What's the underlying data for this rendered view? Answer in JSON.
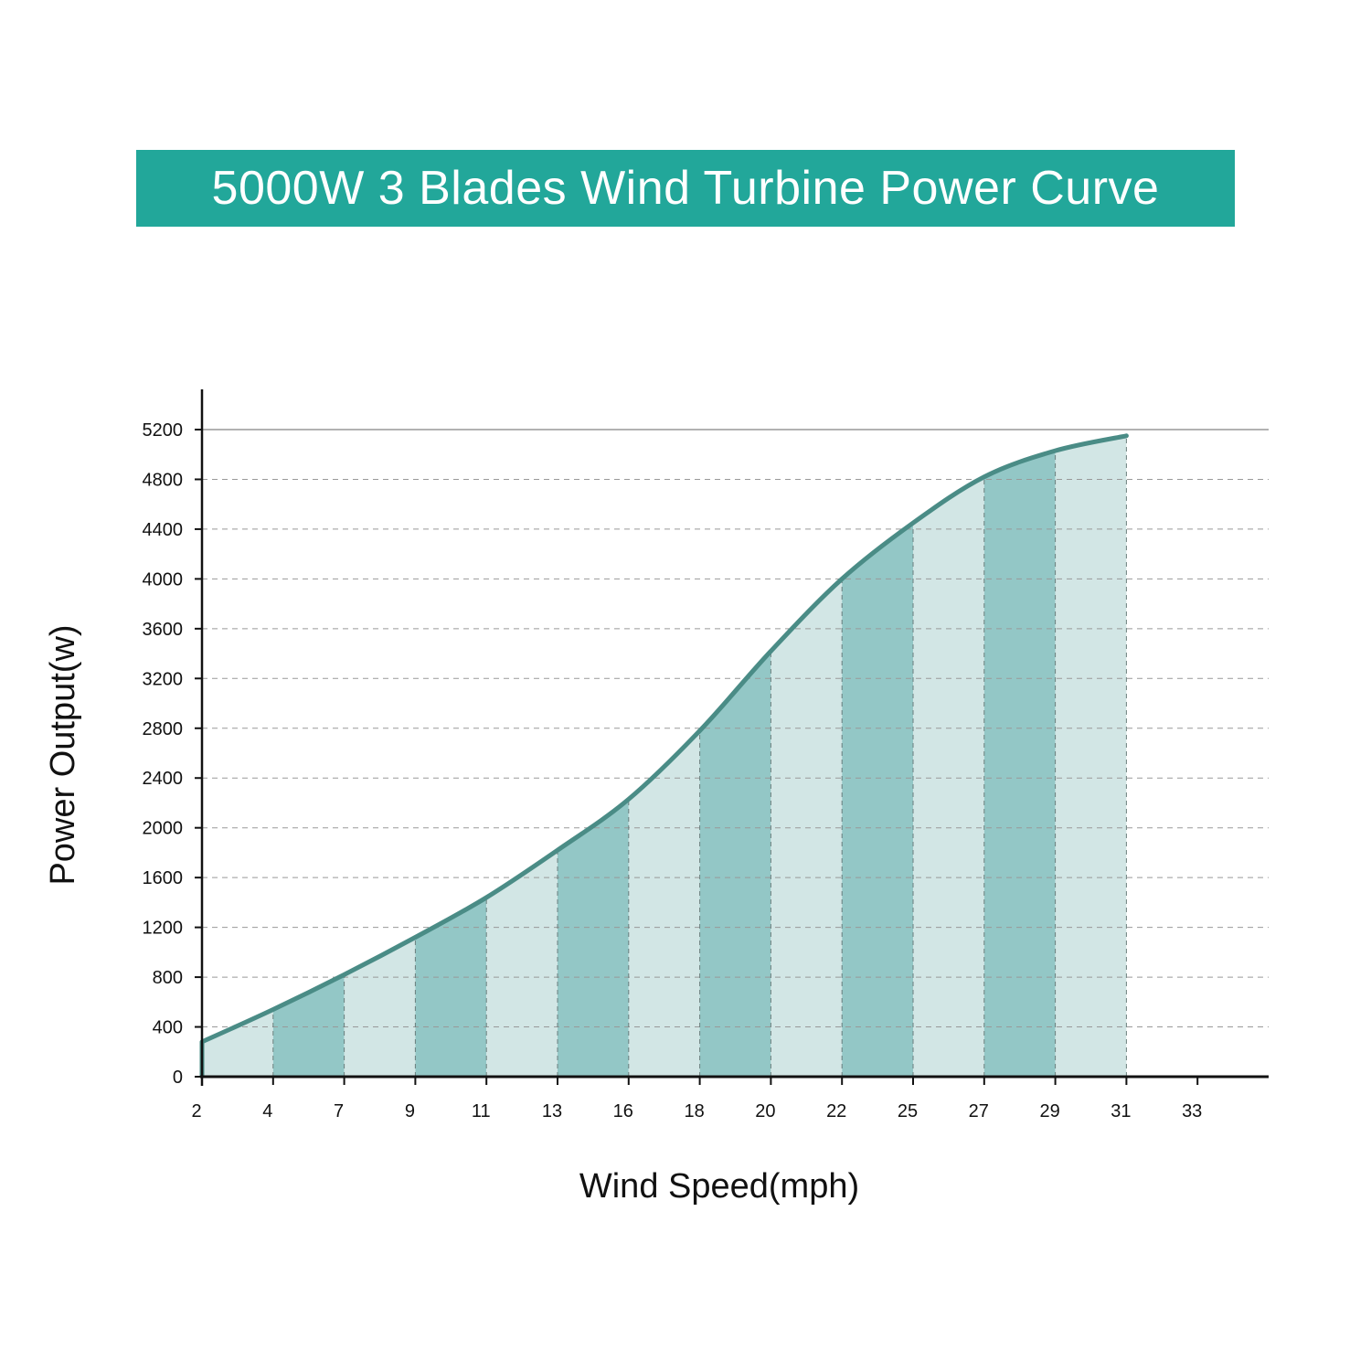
{
  "chart_data": {
    "type": "area",
    "title": "5000W 3 Blades Wind Turbine Power Curve",
    "xlabel": "Wind Speed(mph)",
    "ylabel": "Power Output(w)",
    "x_ticks": [
      "2",
      "4",
      "7",
      "9",
      "11",
      "13",
      "16",
      "18",
      "20",
      "22",
      "25",
      "27",
      "29",
      "31",
      "33"
    ],
    "y_ticks": [
      0,
      400,
      800,
      1200,
      1600,
      2000,
      2400,
      2800,
      3200,
      3600,
      4000,
      4400,
      4800,
      5200
    ],
    "ylim": [
      0,
      5200
    ],
    "grid": "horizontal dashed",
    "series": [
      {
        "x": [
          "2",
          "4",
          "7",
          "9",
          "11",
          "13",
          "16",
          "18",
          "20",
          "22",
          "25",
          "27",
          "29",
          "31"
        ],
        "values": [
          280,
          540,
          820,
          1120,
          1440,
          1820,
          2230,
          2780,
          3420,
          4000,
          4450,
          4820,
          5030,
          5150
        ]
      }
    ],
    "colors": {
      "line": "#4a8c86",
      "fill_dark": "#93c7c6",
      "fill_light": "#d2e6e5",
      "banner": "#22a79a",
      "axis": "#111111",
      "grid": "#999999"
    }
  }
}
